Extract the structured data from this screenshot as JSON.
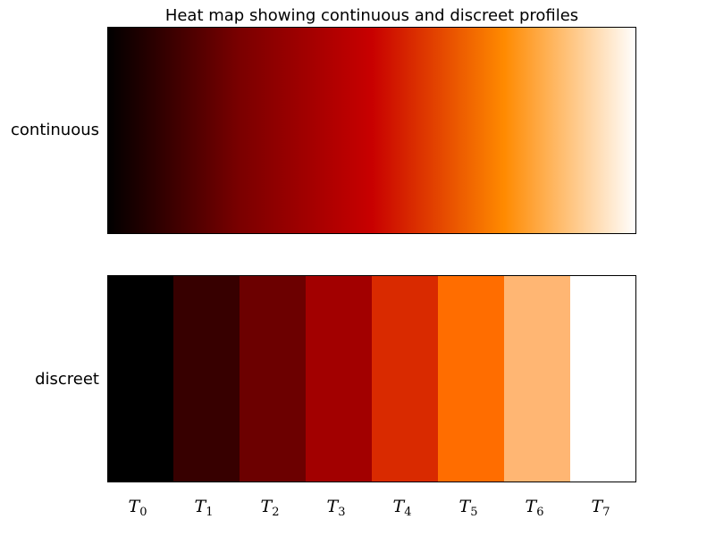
{
  "chart_data": {
    "type": "heatmap",
    "title": "Heat map showing continuous and discreet profiles",
    "colormap": "gist_heat",
    "rows": [
      {
        "label": "continuous",
        "kind": "continuous"
      },
      {
        "label": "discreet",
        "kind": "discreet"
      }
    ],
    "categories": [
      "T",
      "T",
      "T",
      "T",
      "T",
      "T",
      "T",
      "T"
    ],
    "category_subscripts": [
      "0",
      "1",
      "2",
      "3",
      "4",
      "5",
      "6",
      "7"
    ],
    "colors": {
      "continuous_stops": [
        "#000000",
        "#7a0000",
        "#c80000",
        "#ff8a00",
        "#ffffff"
      ],
      "discreet": [
        "#000000",
        "#370000",
        "#6c0000",
        "#a20000",
        "#d92a00",
        "#ff6d00",
        "#ffb673",
        "#ffffff"
      ]
    }
  }
}
